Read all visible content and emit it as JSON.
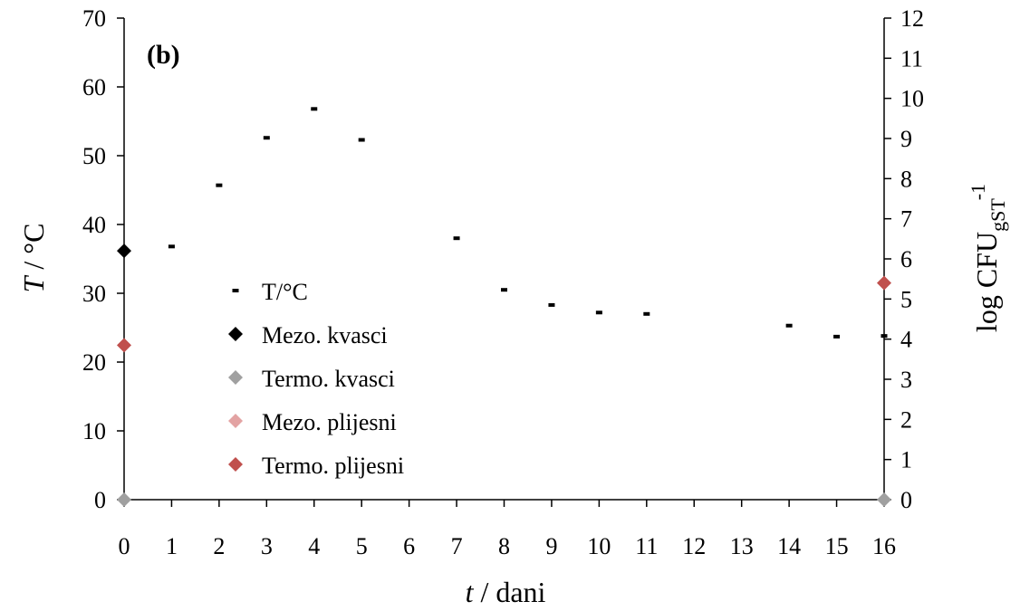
{
  "chart_data": {
    "type": "scatter",
    "panel_label": "(b)",
    "x": {
      "label_var": "t",
      "label_rest": " / dani",
      "categories": [
        "0",
        "1",
        "2",
        "3",
        "4",
        "5",
        "6",
        "7",
        "8",
        "9",
        "10",
        "11",
        "12",
        "13",
        "14",
        "15",
        "16"
      ]
    },
    "y_left": {
      "label_var": "T",
      "label_rest": " / °C",
      "range": [
        0,
        70
      ],
      "ticks": [
        0,
        10,
        20,
        30,
        40,
        50,
        60,
        70
      ]
    },
    "y_right": {
      "label_main": "log CFU",
      "label_sub": "gST",
      "label_sup": "-1",
      "range": [
        0,
        12
      ],
      "ticks": [
        0,
        1,
        2,
        3,
        4,
        5,
        6,
        7,
        8,
        9,
        10,
        11,
        12
      ]
    },
    "series": [
      {
        "name": "T/°C",
        "axis": "left",
        "marker": "dash",
        "color": "#000000",
        "points": [
          {
            "x": "1",
            "y": 36.8
          },
          {
            "x": "2",
            "y": 45.7
          },
          {
            "x": "3",
            "y": 52.6
          },
          {
            "x": "4",
            "y": 56.8
          },
          {
            "x": "5",
            "y": 52.3
          },
          {
            "x": "7",
            "y": 38.0
          },
          {
            "x": "8",
            "y": 30.5
          },
          {
            "x": "9",
            "y": 28.3
          },
          {
            "x": "10",
            "y": 27.2
          },
          {
            "x": "11",
            "y": 27.0
          },
          {
            "x": "14",
            "y": 25.3
          },
          {
            "x": "15",
            "y": 23.7
          },
          {
            "x": "16",
            "y": 23.8
          }
        ]
      },
      {
        "name": "Mezo. kvasci",
        "axis": "right",
        "marker": "diamond",
        "color": "#000000",
        "points": [
          {
            "x": "0",
            "y": 6.2
          }
        ]
      },
      {
        "name": "Termo. kvasci",
        "axis": "right",
        "marker": "diamond",
        "color": "#a0a0a0",
        "points": [
          {
            "x": "0",
            "y": 0
          },
          {
            "x": "16",
            "y": 0
          }
        ]
      },
      {
        "name": "Mezo. plijesni",
        "axis": "right",
        "marker": "diamond",
        "color": "#e3a3a3",
        "points": []
      },
      {
        "name": "Termo. plijesni",
        "axis": "right",
        "marker": "diamond",
        "color": "#c0504d",
        "points": [
          {
            "x": "0",
            "y": 3.85
          },
          {
            "x": "16",
            "y": 5.4
          }
        ]
      }
    ],
    "legend_position": "center-left",
    "grid": false
  }
}
